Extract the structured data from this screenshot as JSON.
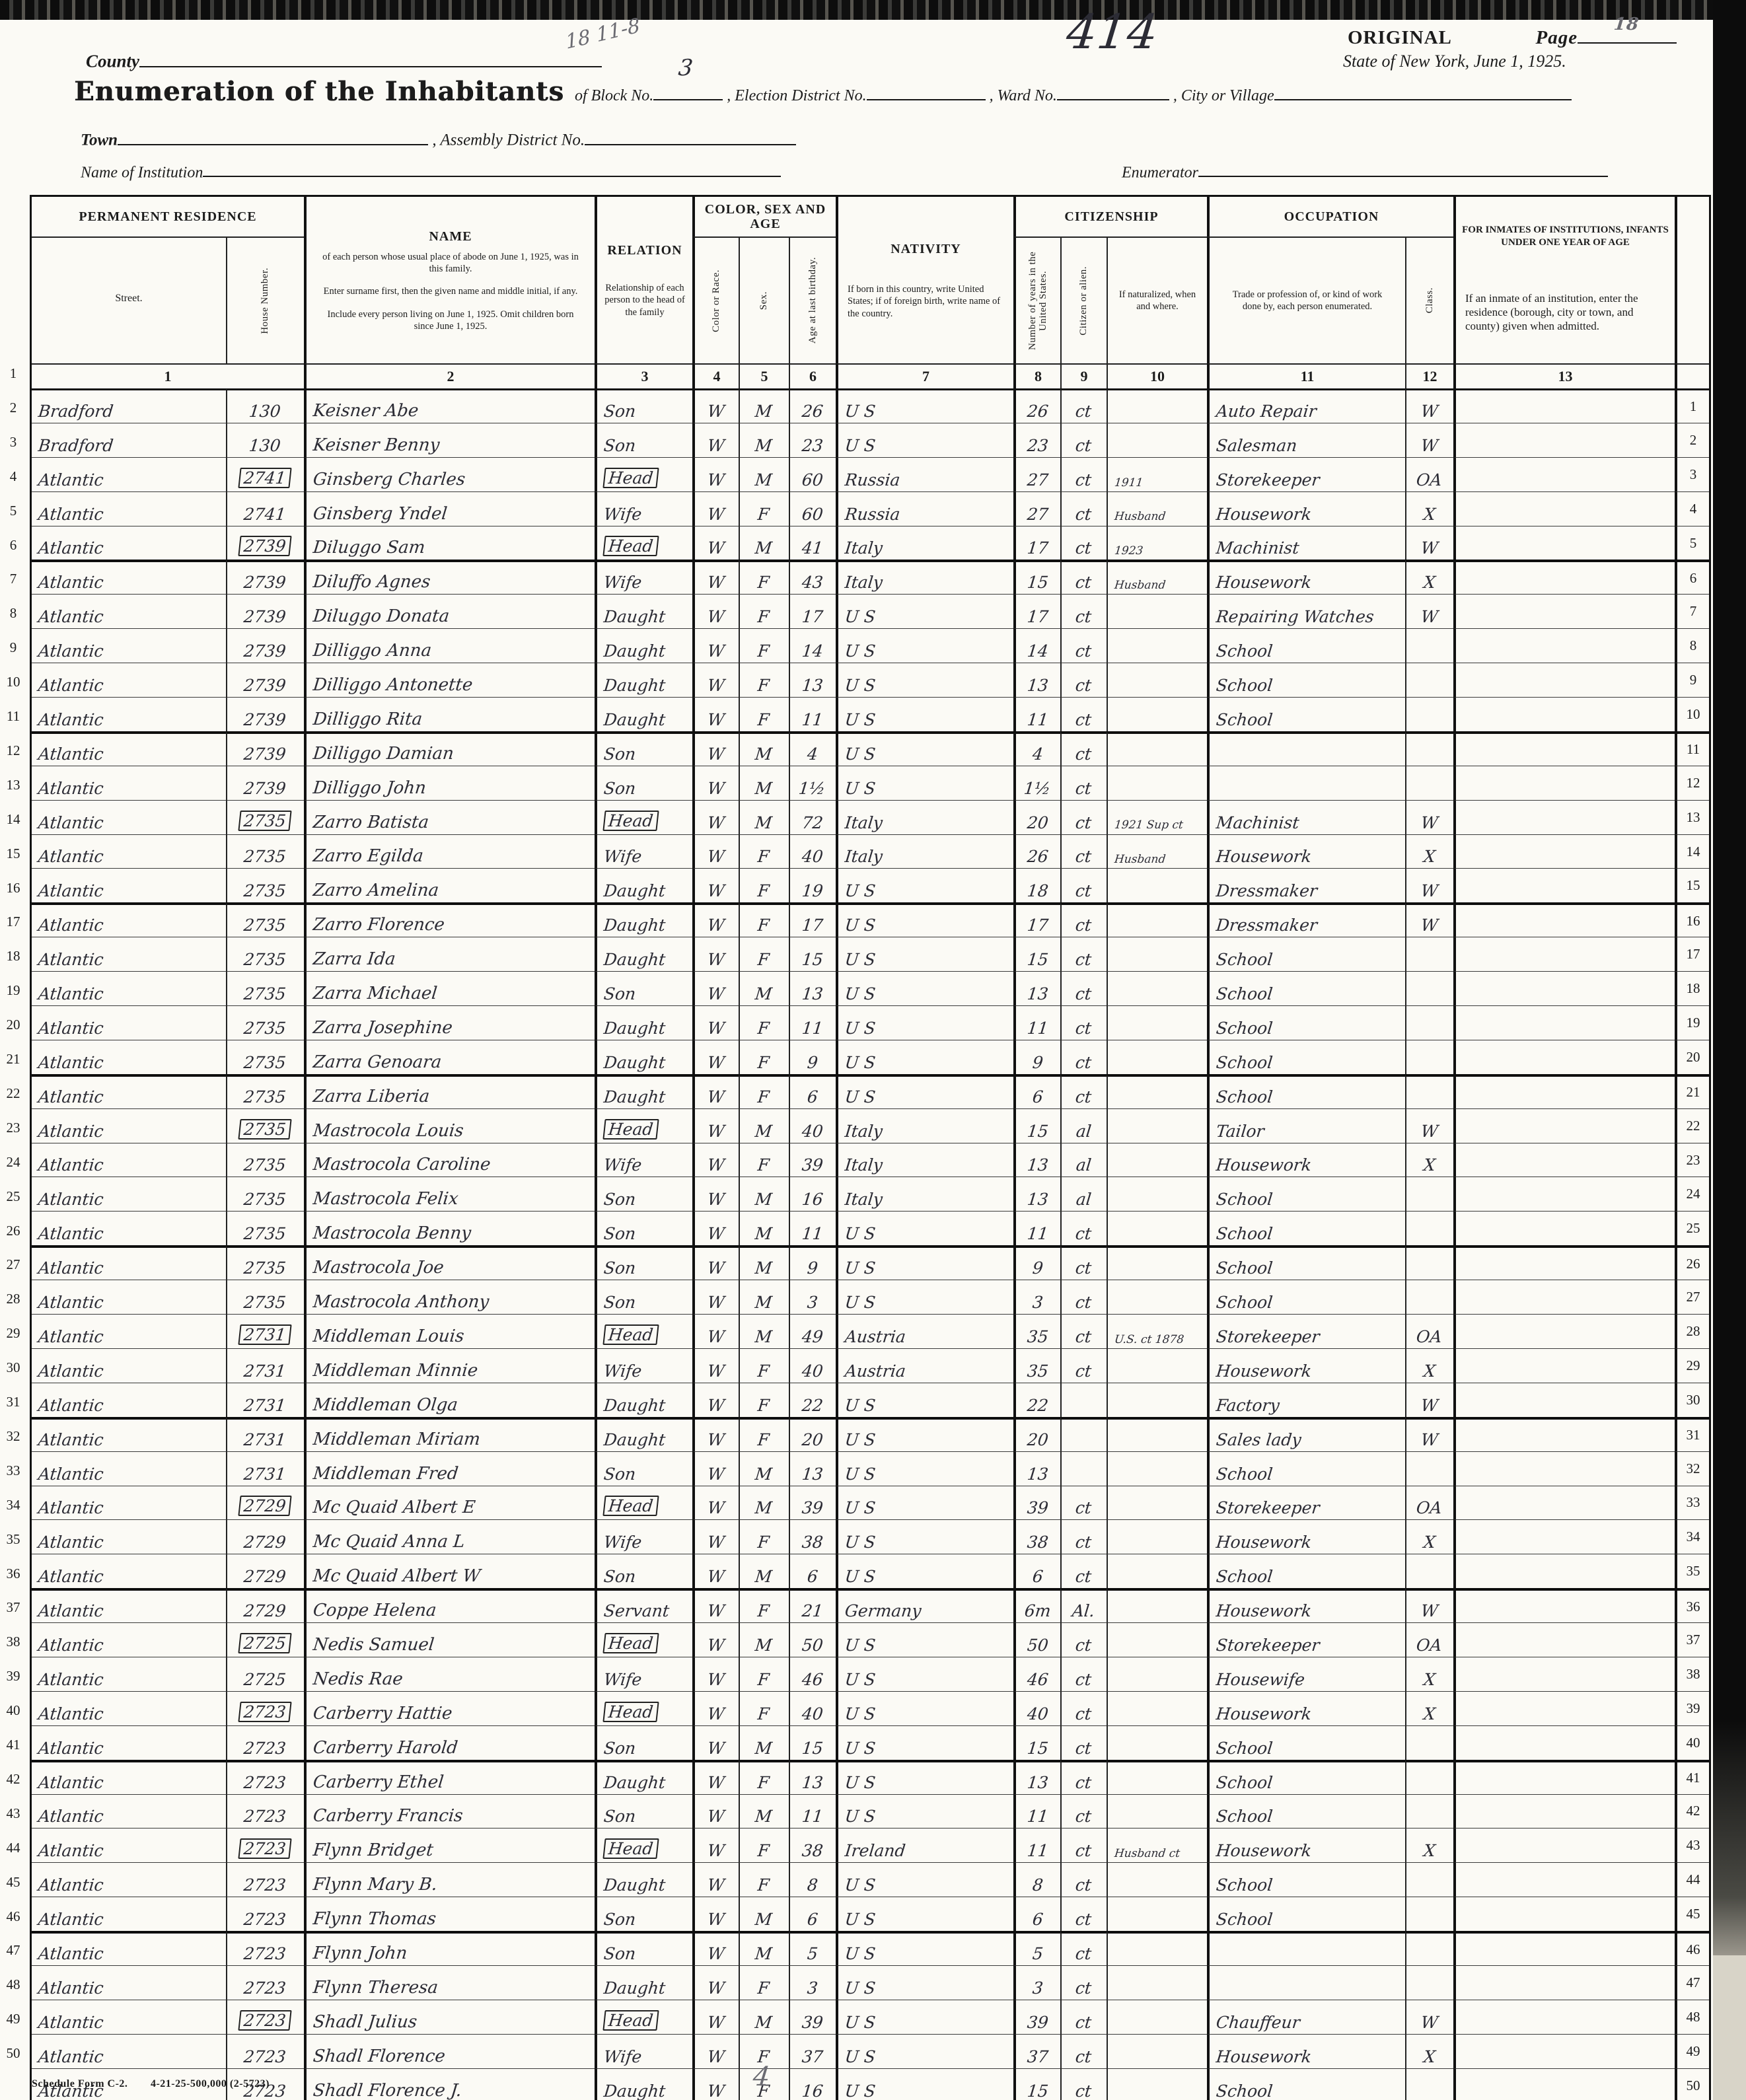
{
  "header": {
    "county_label": "County",
    "handwritten_note": "18 11-8",
    "big_number": "414",
    "original": "ORIGINAL",
    "page_label": "Page",
    "page_value": "18",
    "state_line": "State of New York, June 1, 1925.",
    "title": "Enumeration of the Inhabitants",
    "of_block": "of Block No.",
    "block_value": "3",
    "election_label": ", Election District No.",
    "ward_label": ", Ward No.",
    "city_label": ", City or Village",
    "town_label": "Town",
    "assembly_label": ", Assembly District No.",
    "institution_label": "Name of Institution",
    "enumerator_label": "Enumerator"
  },
  "columns": {
    "perm_res": "PERMANENT RESIDENCE",
    "street": "Street.",
    "house": "House Number.",
    "name": "NAME",
    "name_desc1": "of each person whose usual place of abode on June 1, 1925, was in this family.",
    "name_desc2": "Enter surname first, then the given name and middle initial, if any.",
    "name_desc3": "Include every person living on June 1, 1925. Omit children born since June 1, 1925.",
    "relation": "RELATION",
    "relation_desc": "Relationship of each person to the head of the family",
    "color_group": "COLOR, SEX AND AGE",
    "color": "Color or Race.",
    "sex": "Sex.",
    "age": "Age at last birthday.",
    "nativity": "NATIVITY",
    "nativity_desc": "If born in this country, write United States; if of foreign birth, write name of the country.",
    "citizenship": "CITIZENSHIP",
    "years": "Number of years in the United States.",
    "citizen": "Citizen or alien.",
    "naturalized": "If naturalized, when and where.",
    "occupation": "OCCUPATION",
    "trade": "Trade or profession of, or kind of work done by, each person enumerated.",
    "class": "Class.",
    "inmates": "FOR INMATES OF INSTITUTIONS, INFANTS UNDER ONE YEAR OF AGE",
    "inmates_desc": "If an inmate of an institution, enter the residence (borough, city or town, and county) given when admitted.",
    "numbers": [
      "1",
      "2",
      "3",
      "4",
      "5",
      "6",
      "7",
      "8",
      "9",
      "10",
      "11",
      "12",
      "13"
    ]
  },
  "row_fields": [
    "street",
    "house",
    "name",
    "relation",
    "color",
    "sex",
    "age",
    "nativity",
    "years",
    "citizen",
    "naturalized",
    "occupation",
    "class",
    "head_box"
  ],
  "rows": [
    [
      "Bradford",
      "130",
      "Keisner  Abe",
      "Son",
      "W",
      "M",
      "26",
      "U S",
      "26",
      "ct",
      "",
      "Auto Repair",
      "W",
      0
    ],
    [
      "Bradford",
      "130",
      "Keisner  Benny",
      "Son",
      "W",
      "M",
      "23",
      "U S",
      "23",
      "ct",
      "",
      "Salesman",
      "W",
      0
    ],
    [
      "Atlantic",
      "2741",
      "Ginsberg  Charles",
      "Head",
      "W",
      "M",
      "60",
      "Russia",
      "27",
      "ct",
      "1911",
      "Storekeeper",
      "OA",
      1
    ],
    [
      "Atlantic",
      "2741",
      "Ginsberg  Yndel",
      "Wife",
      "W",
      "F",
      "60",
      "Russia",
      "27",
      "ct",
      "Husband",
      "Housework",
      "X",
      0
    ],
    [
      "Atlantic",
      "2739",
      "Diluggo  Sam",
      "Head",
      "W",
      "M",
      "41",
      "Italy",
      "17",
      "ct",
      "1923",
      "Machinist",
      "W",
      1
    ],
    [
      "Atlantic",
      "2739",
      "Diluffo  Agnes",
      "Wife",
      "W",
      "F",
      "43",
      "Italy",
      "15",
      "ct",
      "Husband",
      "Housework",
      "X",
      0
    ],
    [
      "Atlantic",
      "2739",
      "Diluggo  Donata",
      "Daught",
      "W",
      "F",
      "17",
      "U S",
      "17",
      "ct",
      "",
      "Repairing Watches",
      "W",
      0
    ],
    [
      "Atlantic",
      "2739",
      "Dilliggo  Anna",
      "Daught",
      "W",
      "F",
      "14",
      "U S",
      "14",
      "ct",
      "",
      "School",
      "",
      0
    ],
    [
      "Atlantic",
      "2739",
      "Dilliggo  Antonette",
      "Daught",
      "W",
      "F",
      "13",
      "U S",
      "13",
      "ct",
      "",
      "School",
      "",
      0
    ],
    [
      "Atlantic",
      "2739",
      "Dilliggo  Rita",
      "Daught",
      "W",
      "F",
      "11",
      "U S",
      "11",
      "ct",
      "",
      "School",
      "",
      0
    ],
    [
      "Atlantic",
      "2739",
      "Dilliggo  Damian",
      "Son",
      "W",
      "M",
      "4",
      "U S",
      "4",
      "ct",
      "",
      "",
      "",
      0
    ],
    [
      "Atlantic",
      "2739",
      "Dilliggo  John",
      "Son",
      "W",
      "M",
      "1½",
      "U S",
      "1½",
      "ct",
      "",
      "",
      "",
      0
    ],
    [
      "Atlantic",
      "2735",
      "Zarro  Batista",
      "Head",
      "W",
      "M",
      "72",
      "Italy",
      "20",
      "ct",
      "1921 Sup ct",
      "Machinist",
      "W",
      1
    ],
    [
      "Atlantic",
      "2735",
      "Zarro  Egilda",
      "Wife",
      "W",
      "F",
      "40",
      "Italy",
      "26",
      "ct",
      "Husband",
      "Housework",
      "X",
      0
    ],
    [
      "Atlantic",
      "2735",
      "Zarro  Amelina",
      "Daught",
      "W",
      "F",
      "19",
      "U S",
      "18",
      "ct",
      "",
      "Dressmaker",
      "W",
      0
    ],
    [
      "Atlantic",
      "2735",
      "Zarro  Florence",
      "Daught",
      "W",
      "F",
      "17",
      "U S",
      "17",
      "ct",
      "",
      "Dressmaker",
      "W",
      0
    ],
    [
      "Atlantic",
      "2735",
      "Zarra  Ida",
      "Daught",
      "W",
      "F",
      "15",
      "U S",
      "15",
      "ct",
      "",
      "School",
      "",
      0
    ],
    [
      "Atlantic",
      "2735",
      "Zarra  Michael",
      "Son",
      "W",
      "M",
      "13",
      "U S",
      "13",
      "ct",
      "",
      "School",
      "",
      0
    ],
    [
      "Atlantic",
      "2735",
      "Zarra  Josephine",
      "Daught",
      "W",
      "F",
      "11",
      "U S",
      "11",
      "ct",
      "",
      "School",
      "",
      0
    ],
    [
      "Atlantic",
      "2735",
      "Zarra  Genoara",
      "Daught",
      "W",
      "F",
      "9",
      "U S",
      "9",
      "ct",
      "",
      "School",
      "",
      0
    ],
    [
      "Atlantic",
      "2735",
      "Zarra  Liberia",
      "Daught",
      "W",
      "F",
      "6",
      "U S",
      "6",
      "ct",
      "",
      "School",
      "",
      0
    ],
    [
      "Atlantic",
      "2735",
      "Mastrocola  Louis",
      "Head",
      "W",
      "M",
      "40",
      "Italy",
      "15",
      "al",
      "",
      "Tailor",
      "W",
      1
    ],
    [
      "Atlantic",
      "2735",
      "Mastrocola  Caroline",
      "Wife",
      "W",
      "F",
      "39",
      "Italy",
      "13",
      "al",
      "",
      "Housework",
      "X",
      0
    ],
    [
      "Atlantic",
      "2735",
      "Mastrocola  Felix",
      "Son",
      "W",
      "M",
      "16",
      "Italy",
      "13",
      "al",
      "",
      "School",
      "",
      0
    ],
    [
      "Atlantic",
      "2735",
      "Mastrocola  Benny",
      "Son",
      "W",
      "M",
      "11",
      "U S",
      "11",
      "ct",
      "",
      "School",
      "",
      0
    ],
    [
      "Atlantic",
      "2735",
      "Mastrocola  Joe",
      "Son",
      "W",
      "M",
      "9",
      "U S",
      "9",
      "ct",
      "",
      "School",
      "",
      0
    ],
    [
      "Atlantic",
      "2735",
      "Mastrocola  Anthony",
      "Son",
      "W",
      "M",
      "3",
      "U S",
      "3",
      "ct",
      "",
      "School",
      "",
      0
    ],
    [
      "Atlantic",
      "2731",
      "Middleman  Louis",
      "Head",
      "W",
      "M",
      "49",
      "Austria",
      "35",
      "ct",
      "U.S. ct 1878",
      "Storekeeper",
      "OA",
      1
    ],
    [
      "Atlantic",
      "2731",
      "Middleman  Minnie",
      "Wife",
      "W",
      "F",
      "40",
      "Austria",
      "35",
      "ct",
      "",
      "Housework",
      "X",
      0
    ],
    [
      "Atlantic",
      "2731",
      "Middleman  Olga",
      "Daught",
      "W",
      "F",
      "22",
      "U S",
      "22",
      "",
      "",
      "Factory",
      "W",
      0
    ],
    [
      "Atlantic",
      "2731",
      "Middleman  Miriam",
      "Daught",
      "W",
      "F",
      "20",
      "U S",
      "20",
      "",
      "",
      "Sales lady",
      "W",
      0
    ],
    [
      "Atlantic",
      "2731",
      "Middleman  Fred",
      "Son",
      "W",
      "M",
      "13",
      "U S",
      "13",
      "",
      "",
      "School",
      "",
      0
    ],
    [
      "Atlantic",
      "2729",
      "Mc Quaid  Albert E",
      "Head",
      "W",
      "M",
      "39",
      "U S",
      "39",
      "ct",
      "",
      "Storekeeper",
      "OA",
      1
    ],
    [
      "Atlantic",
      "2729",
      "Mc Quaid  Anna L",
      "Wife",
      "W",
      "F",
      "38",
      "U S",
      "38",
      "ct",
      "",
      "Housework",
      "X",
      0
    ],
    [
      "Atlantic",
      "2729",
      "Mc Quaid  Albert W",
      "Son",
      "W",
      "M",
      "6",
      "U S",
      "6",
      "ct",
      "",
      "School",
      "",
      0
    ],
    [
      "Atlantic",
      "2729",
      "Coppe  Helena",
      "Servant",
      "W",
      "F",
      "21",
      "Germany",
      "6m",
      "Al.",
      "",
      "Housework",
      "W",
      0
    ],
    [
      "Atlantic",
      "2725",
      "Nedis  Samuel",
      "Head",
      "W",
      "M",
      "50",
      "U S",
      "50",
      "ct",
      "",
      "Storekeeper",
      "OA",
      1
    ],
    [
      "Atlantic",
      "2725",
      "Nedis  Rae",
      "Wife",
      "W",
      "F",
      "46",
      "U S",
      "46",
      "ct",
      "",
      "Housewife",
      "X",
      0
    ],
    [
      "Atlantic",
      "2723",
      "Carberry  Hattie",
      "Head",
      "W",
      "F",
      "40",
      "U S",
      "40",
      "ct",
      "",
      "Housework",
      "X",
      1
    ],
    [
      "Atlantic",
      "2723",
      "Carberry  Harold",
      "Son",
      "W",
      "M",
      "15",
      "U S",
      "15",
      "ct",
      "",
      "School",
      "",
      0
    ],
    [
      "Atlantic",
      "2723",
      "Carberry  Ethel",
      "Daught",
      "W",
      "F",
      "13",
      "U S",
      "13",
      "ct",
      "",
      "School",
      "",
      0
    ],
    [
      "Atlantic",
      "2723",
      "Carberry  Francis",
      "Son",
      "W",
      "M",
      "11",
      "U S",
      "11",
      "ct",
      "",
      "School",
      "",
      0
    ],
    [
      "Atlantic",
      "2723",
      "Flynn  Bridget",
      "Head",
      "W",
      "F",
      "38",
      "Ireland",
      "11",
      "ct",
      "Husband ct",
      "Housework",
      "X",
      1
    ],
    [
      "Atlantic",
      "2723",
      "Flynn  Mary B.",
      "Daught",
      "W",
      "F",
      "8",
      "U S",
      "8",
      "ct",
      "",
      "School",
      "",
      0
    ],
    [
      "Atlantic",
      "2723",
      "Flynn  Thomas",
      "Son",
      "W",
      "M",
      "6",
      "U S",
      "6",
      "ct",
      "",
      "School",
      "",
      0
    ],
    [
      "Atlantic",
      "2723",
      "Flynn  John",
      "Son",
      "W",
      "M",
      "5",
      "U S",
      "5",
      "ct",
      "",
      "",
      "",
      0
    ],
    [
      "Atlantic",
      "2723",
      "Flynn  Theresa",
      "Daught",
      "W",
      "F",
      "3",
      "U S",
      "3",
      "ct",
      "",
      "",
      "",
      0
    ],
    [
      "Atlantic",
      "2723",
      "Shadl  Julius",
      "Head",
      "W",
      "M",
      "39",
      "U S",
      "39",
      "ct",
      "",
      "Chauffeur",
      "W",
      1
    ],
    [
      "Atlantic",
      "2723",
      "Shadl  Florence",
      "Wife",
      "W",
      "F",
      "37",
      "U S",
      "37",
      "ct",
      "",
      "Housework",
      "X",
      0
    ],
    [
      "Atlantic",
      "2723",
      "Shadl  Florence J.",
      "Daught",
      "W",
      "F",
      "16",
      "U S",
      "15",
      "ct",
      "",
      "School",
      "",
      0
    ]
  ],
  "footer": {
    "form": "Schedule Form C-2.",
    "print_code": "4-21-25-500,000 (2-5723)",
    "handwritten": "4"
  }
}
